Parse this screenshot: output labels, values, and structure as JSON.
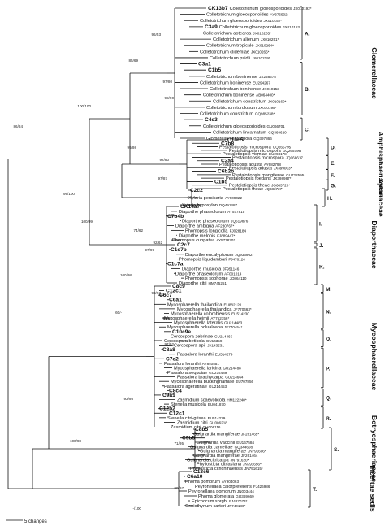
{
  "tree": {
    "scale_bar_label": "5 changes",
    "families": [
      {
        "name": "Glomerellaceae",
        "subclades": [
          {
            "letter": "A.",
            "leaves": [
              {
                "isolate": "CK13b7",
                "taxon": "Colletotrichum gloeosporioides",
                "acc": "JX010192*"
              },
              {
                "taxon": "Colletotrichum gloeosporioides",
                "acc": "AY376532"
              },
              {
                "taxon": "Colletotrichum gloeosporioides",
                "acc": "JX010152*"
              },
              {
                "isolate": "C3a9",
                "taxon": "Colletotrichum gloeosporioides",
                "acc": "JX010153"
              },
              {
                "taxon": "Colletotrichum aotearoa",
                "acc": "JX010205*"
              },
              {
                "taxon": "Colletotrichum alienum",
                "acc": "JX010251*"
              },
              {
                "taxon": "Colletotrichum tropicale",
                "acc": "JX010264*"
              },
              {
                "taxon": "Colletotrichum clidemiae",
                "acc": "JX010265*"
              },
              {
                "taxon": "Colletotrichum psidii",
                "acc": "JX010219*"
              }
            ]
          },
          {
            "letter": "B.",
            "leaves": [
              {
                "isolate": "C3a1"
              },
              {
                "isolate": "C1b5"
              },
              {
                "taxon": "Colletotrichum boninense",
                "acc": "JX258675"
              },
              {
                "taxon": "Colletotrichum boninense",
                "acc": "EU294267"
              },
              {
                "taxon": "Colletotrichum boninense",
                "acc": "JX010153"
              },
              {
                "taxon": "Colletotrichum boninense",
                "acc": "AB064400*"
              },
              {
                "taxon": "Colletotrichum constrictum",
                "acc": "JX010160*"
              },
              {
                "taxon": "Colletotrichum torulosum",
                "acc": "JX010195*"
              },
              {
                "taxon": "Colletotrichum constrictum",
                "acc": "GQ985238*"
              }
            ]
          },
          {
            "letter": "C.",
            "leaves": [
              {
                "isolate": "C4c3"
              },
              {
                "taxon": "Colletotrichum gloeosporioides",
                "acc": "GU066701"
              },
              {
                "taxon": "Colletotrichum lincarnatum",
                "acc": "GQ369620"
              },
              {
                "taxon": "Glomerella septospora",
                "acc": "GQ397866"
              }
            ]
          }
        ]
      },
      {
        "name": "Amphisphaeriaceae",
        "subclades": [
          {
            "letter": "D.",
            "leaves": [
              {
                "isolate": "C10c5"
              },
              {
                "isolate": "C7b8"
              },
              {
                "taxon": "Pestalotiopsis microspora",
                "acc": "GQ265795"
              },
              {
                "taxon": "Pestalotiopsis microspora",
                "acc": "GQ265796"
              },
              {
                "taxon": "Pestalotiopsis vismiae",
                "acc": "EU293178"
              }
            ]
          },
          {
            "letter": "E.",
            "leaves": [
              {
                "taxon": "Pestalotiopsis microspora",
                "acc": "JQ068617"
              },
              {
                "isolate": "C2a4"
              },
              {
                "taxon": "Pestalotiopsis adusta",
                "acc": "AY682798"
              },
              {
                "taxon": "Pestalotiopsis adusta",
                "acc": "JX399003*"
              }
            ]
          },
          {
            "letter": "F.",
            "leaves": [
              {
                "isolate": "C6b2b"
              },
              {
                "taxon": "Pestalotiopsis mangiferae",
                "acc": "GU722595"
              },
              {
                "taxon": "Pestalotiopsis foedans",
                "acc": "JX398987*"
              }
            ]
          },
          {
            "letter": "G.",
            "leaves": [
              {
                "isolate": "C1b5"
              },
              {
                "taxon": "Pestalotiopsis theae",
                "acc": "JQ683720*"
              },
              {
                "taxon": "Pestalotiopsis theae",
                "acc": "JQ683727*"
              }
            ]
          }
        ]
      },
      {
        "name": "Xylariaceae",
        "subclades": [
          {
            "letter": "H.",
            "leaves": [
              {
                "isolate": "C2c2"
              },
              {
                "taxon": "Xylaria persicaria",
                "acc": "AY909022"
              },
              {
                "taxon": "Xylaria hypoxylon",
                "acc": "DQ491487"
              }
            ]
          }
        ]
      },
      {
        "name": "Diaporthaceae",
        "subclades": [
          {
            "letter": "I.",
            "leaves": [
              {
                "isolate": "CK14a7"
              },
              {
                "taxon": "Diaporthe phaseolorum",
                "acc": "AY577815"
              },
              {
                "isolate": "C7b4b"
              },
              {
                "taxon": "Diaporthe phaseolorum",
                "acc": "JQ619876"
              },
              {
                "taxon": "Diaporthe ambigua",
                "acc": "AF230767*"
              },
              {
                "taxon": "Phomopsis longicolla",
                "acc": "FJ028184"
              },
              {
                "taxon": "Diaporthe melonis",
                "acc": "FJ889447*"
              },
              {
                "taxon": "Phomopsis cuppatea",
                "acc": "AY577820*"
              }
            ]
          },
          {
            "letter": "J.",
            "leaves": [
              {
                "isolate": "C2c7"
              }
            ]
          },
          {
            "letter": "K.",
            "leaves": [
              {
                "isolate": "C1c7b"
              },
              {
                "taxon": "Diaporthe eucalyptorum",
                "acc": "JQ936962*"
              },
              {
                "taxon": "Phomopsis liquidambari",
                "acc": "FJ478124"
              },
              {
                "isolate": "C1c7a"
              },
              {
                "taxon": "Diaporthe rhusicola",
                "acc": "JF951146"
              },
              {
                "taxon": "Diaporthe phaseolorum",
                "acc": "AF001014"
              },
              {
                "taxon": "Phomopsis sophorae",
                "acc": "JQ864110"
              },
              {
                "taxon": "Diaporthe citri",
                "acc": "HM745251"
              }
            ]
          }
        ]
      },
      {
        "name": "Mycosphaerellaceae",
        "subclades": [
          {
            "letter": "M.",
            "leaves": [
              {
                "isolate": "C8c9"
              },
              {
                "isolate": "C12c1"
              }
            ]
          },
          {
            "letter": "N.",
            "leaves": [
              {
                "isolate": "C6c7"
              },
              {
                "isolate": "C6a1"
              },
              {
                "taxon": "Mycosphaerella thailandica",
                "acc": "EU882120"
              },
              {
                "taxon": "Mycosphaerella thailandica",
                "acc": "JF770463*"
              },
              {
                "taxon": "Mycosphaerella colombiensis",
                "acc": "EU514230"
              },
              {
                "taxon": "Mycosphaerella heimii",
                "acc": "AY752156*"
              },
              {
                "taxon": "Mycosphaerella lateralis",
                "acc": "GU214483"
              },
              {
                "taxon": "Mycosphaerella holualoana",
                "acc": "JF770454*"
              }
            ]
          },
          {
            "letter": "O.",
            "leaves": [
              {
                "isolate": "C10c9e"
              },
              {
                "taxon": "Cercospora zebrinae",
                "acc": "GU214465"
              },
              {
                "taxon": "Cercospora beticola",
                "acc": "GU14359"
              },
              {
                "taxon": "Cercospora apii",
                "acc": "JX143531"
              }
            ]
          },
          {
            "letter": "P.",
            "leaves": [
              {
                "isolate": "C8a8"
              },
              {
                "taxon": "Passalora loranthi",
                "acc": "EU514279"
              },
              {
                "isolate": "C7c2"
              },
              {
                "taxon": "Passalora loranthi",
                "acc": "AY840551"
              },
              {
                "taxon": "Mycosphaerella laricina",
                "acc": "GU214488"
              },
              {
                "taxon": "Passalora sequoiae",
                "acc": "GU214489"
              },
              {
                "taxon": "Passalora brachycarpa",
                "acc": "GU214664"
              },
              {
                "taxon": "Mycosphaerella buckinghamiae",
                "acc": "EU707856"
              },
              {
                "taxon": "Passalora ageratinae",
                "acc": "GU214453"
              }
            ]
          },
          {
            "letter": "Q.",
            "leaves": [
              {
                "isolate": "C8c4"
              },
              {
                "isolate": "C9a1"
              },
              {
                "taxon": "Zasmidium scaevolicola",
                "acc": "HM122240*"
              },
              {
                "taxon": "Stenella musicola",
                "acc": "EU041870"
              }
            ]
          },
          {
            "letter": "R.",
            "leaves": [
              {
                "isolate": "C12b2"
              },
              {
                "isolate": "C12c1"
              },
              {
                "taxon": "Stenella citri-grisea",
                "acc": "EU514229"
              },
              {
                "taxon": "Zasmidium citri",
                "acc": "GU006218"
              },
              {
                "taxon": "Zasmidium citri",
                "acc": "GU006116"
              }
            ]
          }
        ]
      },
      {
        "name": "Botryosphaeriaceae",
        "subclades": [
          {
            "letter": "S.",
            "leaves": [
              {
                "isolate": "C8b5"
              },
              {
                "taxon": "Guignardia mangiferae",
                "acc": "JF261465*"
              },
              {
                "isolate": "C9b5"
              },
              {
                "taxon": "Guignardia vaccinii",
                "acc": "EU167584"
              },
              {
                "taxon": "Guignardia camelliae",
                "acc": "GQ344608"
              },
              {
                "taxon": "Guignardia mangiferae",
                "acc": "JN791606*"
              },
              {
                "taxon": "Guignardia mangiferae",
                "acc": "JF261464"
              },
              {
                "taxon": "Guignardia citricarpa",
                "acc": "JN791620*"
              },
              {
                "taxon": "Phyllosticta citriasiana",
                "acc": "JN791656*"
              },
              {
                "taxon": "Phyllosticta citrichinaensis",
                "acc": "JN791615*"
              }
            ]
          }
        ]
      },
      {
        "name": "Incertae sedis",
        "subclades": [
          {
            "letter": "T.",
            "leaves": [
              {
                "isolate": "C13c6"
              },
              {
                "isolate": "C6a10"
              },
              {
                "taxon": "Phoma pomorum",
                "acc": "AY904063"
              },
              {
                "taxon": "Peyronellaea calorpreferens",
                "acc": "FJ426986"
              },
              {
                "taxon": "Peyronellaea pomorum",
                "acc": "JN003444"
              },
              {
                "taxon": "Phoma glomerata",
                "acc": "GQ369669"
              },
              {
                "taxon": "Epicoccum sorghi",
                "acc": "FJ427073*"
              },
              {
                "taxon": "Coniothyrium carteri",
                "acc": "JF740186*"
              }
            ]
          }
        ]
      }
    ],
    "support_values": [
      "96/53",
      "85/69",
      "100/100",
      "97/80",
      "98/90",
      "86/84",
      "99/98",
      "92/80",
      "97/87",
      "99/100",
      "74/62",
      "100/99",
      "92/62",
      "97/99",
      "100/98",
      "98/93",
      "60/-",
      "99/82",
      "97/92",
      "77/74",
      "96/93",
      "93/98",
      "100/98",
      "71/95",
      "99/97",
      "-/100"
    ]
  }
}
